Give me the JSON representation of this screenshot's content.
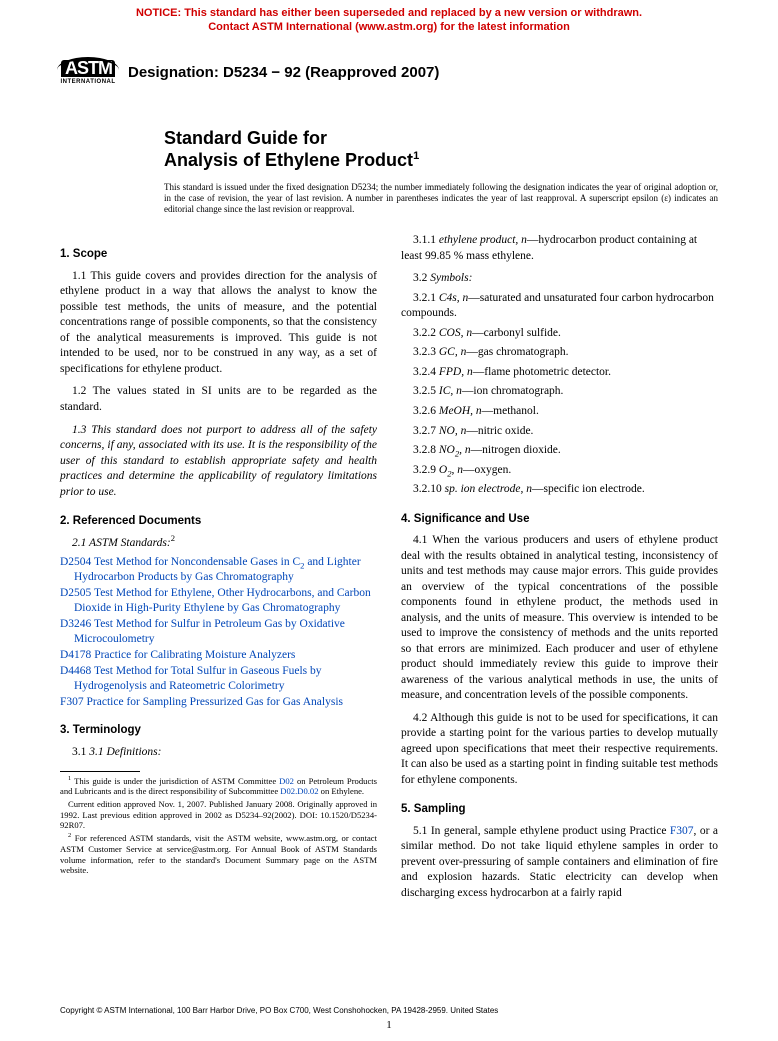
{
  "notice": {
    "line1": "NOTICE: This standard has either been superseded and replaced by a new version or withdrawn.",
    "line2": "Contact ASTM International (www.astm.org) for the latest information",
    "color": "#d00000"
  },
  "logo": {
    "text": "ASTM",
    "subtitle": "INTERNATIONAL"
  },
  "designation": "Designation: D5234 − 92 (Reapproved 2007)",
  "title": {
    "line1": "Standard Guide for",
    "line2": "Analysis of Ethylene Product",
    "superscript": "1"
  },
  "issue_note": "This standard is issued under the fixed designation D5234; the number immediately following the designation indicates the year of original adoption or, in the case of revision, the year of last revision. A number in parentheses indicates the year of last reapproval. A superscript epsilon (ε) indicates an editorial change since the last revision or reapproval.",
  "left": {
    "scope_head": "1. Scope",
    "p1_1": "1.1 This guide covers and provides direction for the analysis of ethylene product in a way that allows the analyst to know the possible test methods, the units of measure, and the potential concentrations range of possible components, so that the consistency of the analytical measurements is improved. This guide is not intended to be used, nor to be construed in any way, as a set of specifications for ethylene product.",
    "p1_2": "1.2 The values stated in SI units are to be regarded as the standard.",
    "p1_3": "1.3 This standard does not purport to address all of the safety concerns, if any, associated with its use. It is the responsibility of the user of this standard to establish appropriate safety and health practices and determine the applicability of regulatory limitations prior to use.",
    "ref_head": "2. Referenced Documents",
    "ref_sub": "2.1 ASTM Standards:",
    "ref_sup": "2",
    "refs": [
      {
        "code": "D2504",
        "text": "Test Method for Noncondensable Gases in C",
        "sub": "2",
        "text2": " and Lighter Hydrocarbon Products by Gas Chromatography"
      },
      {
        "code": "D2505",
        "text": "Test Method for Ethylene, Other Hydrocarbons, and Carbon Dioxide in High-Purity Ethylene by Gas Chromatography"
      },
      {
        "code": "D3246",
        "text": "Test Method for Sulfur in Petroleum Gas by Oxidative Microcoulometry"
      },
      {
        "code": "D4178",
        "text": "Practice for Calibrating Moisture Analyzers"
      },
      {
        "code": "D4468",
        "text": "Test Method for Total Sulfur in Gaseous Fuels by Hydrogenolysis and Rateometric Colorimetry"
      },
      {
        "code": "F307",
        "text": "Practice for Sampling Pressurized Gas for Gas Analysis"
      }
    ],
    "term_head": "3. Terminology",
    "term_sub": "3.1 Definitions:",
    "fn1": "This guide is under the jurisdiction of ASTM Committee ",
    "fn1_link1": "D02",
    "fn1b": " on Petroleum Products and Lubricants and is the direct responsibility of Subcommittee ",
    "fn1_link2": "D02.D0.02",
    "fn1c": " on Ethylene.",
    "fn1d": "Current edition approved Nov. 1, 2007. Published January 2008. Originally approved in 1992. Last previous edition approved in 2002 as D5234–92(2002). DOI: 10.1520/D5234-92R07.",
    "fn2": "For referenced ASTM standards, visit the ASTM website, www.astm.org, or contact ASTM Customer Service at service@astm.org. For Annual Book of ASTM Standards volume information, refer to the standard's Document Summary page on the ASTM website."
  },
  "right": {
    "s3_1_1_term": "ethylene product, n",
    "s3_1_1_def": "—hydrocarbon product containing at least 99.85 % mass ethylene.",
    "symbols_head": "3.2 Symbols:",
    "symbols": [
      {
        "num": "3.2.1",
        "term": "C4s, n",
        "def": "—saturated and unsaturated four carbon hydrocarbon compounds."
      },
      {
        "num": "3.2.2",
        "term": "COS, n",
        "def": "—carbonyl sulfide."
      },
      {
        "num": "3.2.3",
        "term": "GC, n",
        "def": "—gas chromatograph."
      },
      {
        "num": "3.2.4",
        "term": "FPD, n",
        "def": "—flame photometric detector."
      },
      {
        "num": "3.2.5",
        "term": "IC, n",
        "def": "—ion chromatograph."
      },
      {
        "num": "3.2.6",
        "term": "MeOH, n",
        "def": "—methanol."
      },
      {
        "num": "3.2.7",
        "term": "NO, n",
        "def": "—nitric oxide."
      },
      {
        "num": "3.2.8",
        "term": "NO",
        "sub": "2",
        "term2": ", n",
        "def": "—nitrogen dioxide."
      },
      {
        "num": "3.2.9",
        "term": "O",
        "sub": "2",
        "term2": ", n",
        "def": "—oxygen."
      },
      {
        "num": "3.2.10",
        "term": "sp. ion electrode, n",
        "def": "—specific ion electrode."
      }
    ],
    "sig_head": "4. Significance and Use",
    "p4_1": "4.1 When the various producers and users of ethylene product deal with the results obtained in analytical testing, inconsistency of units and test methods may cause major errors. This guide provides an overview of the typical concentrations of the possible components found in ethylene product, the methods used in analysis, and the units of measure. This overview is intended to be used to improve the consistency of methods and the units reported so that errors are minimized. Each producer and user of ethylene product should immediately review this guide to improve their awareness of the various analytical methods in use, the units of measure, and concentration levels of the possible components.",
    "p4_2": "4.2 Although this guide is not to be used for specifications, it can provide a starting point for the various parties to develop mutually agreed upon specifications that meet their respective requirements. It can also be used as a starting point in finding suitable test methods for ethylene components.",
    "samp_head": "5. Sampling",
    "p5_1a": "5.1 In general, sample ethylene product using Practice ",
    "p5_1_link": "F307",
    "p5_1b": ", or a similar method. Do not take liquid ethylene samples in order to prevent over-pressuring of sample containers and elimination of fire and explosion hazards. Static electricity can develop when discharging excess hydrocarbon at a fairly rapid"
  },
  "footer": "Copyright © ASTM International, 100 Barr Harbor Drive, PO Box C700, West Conshohocken, PA 19428-2959. United States",
  "page_number": "1",
  "link_color": "#0046b8"
}
